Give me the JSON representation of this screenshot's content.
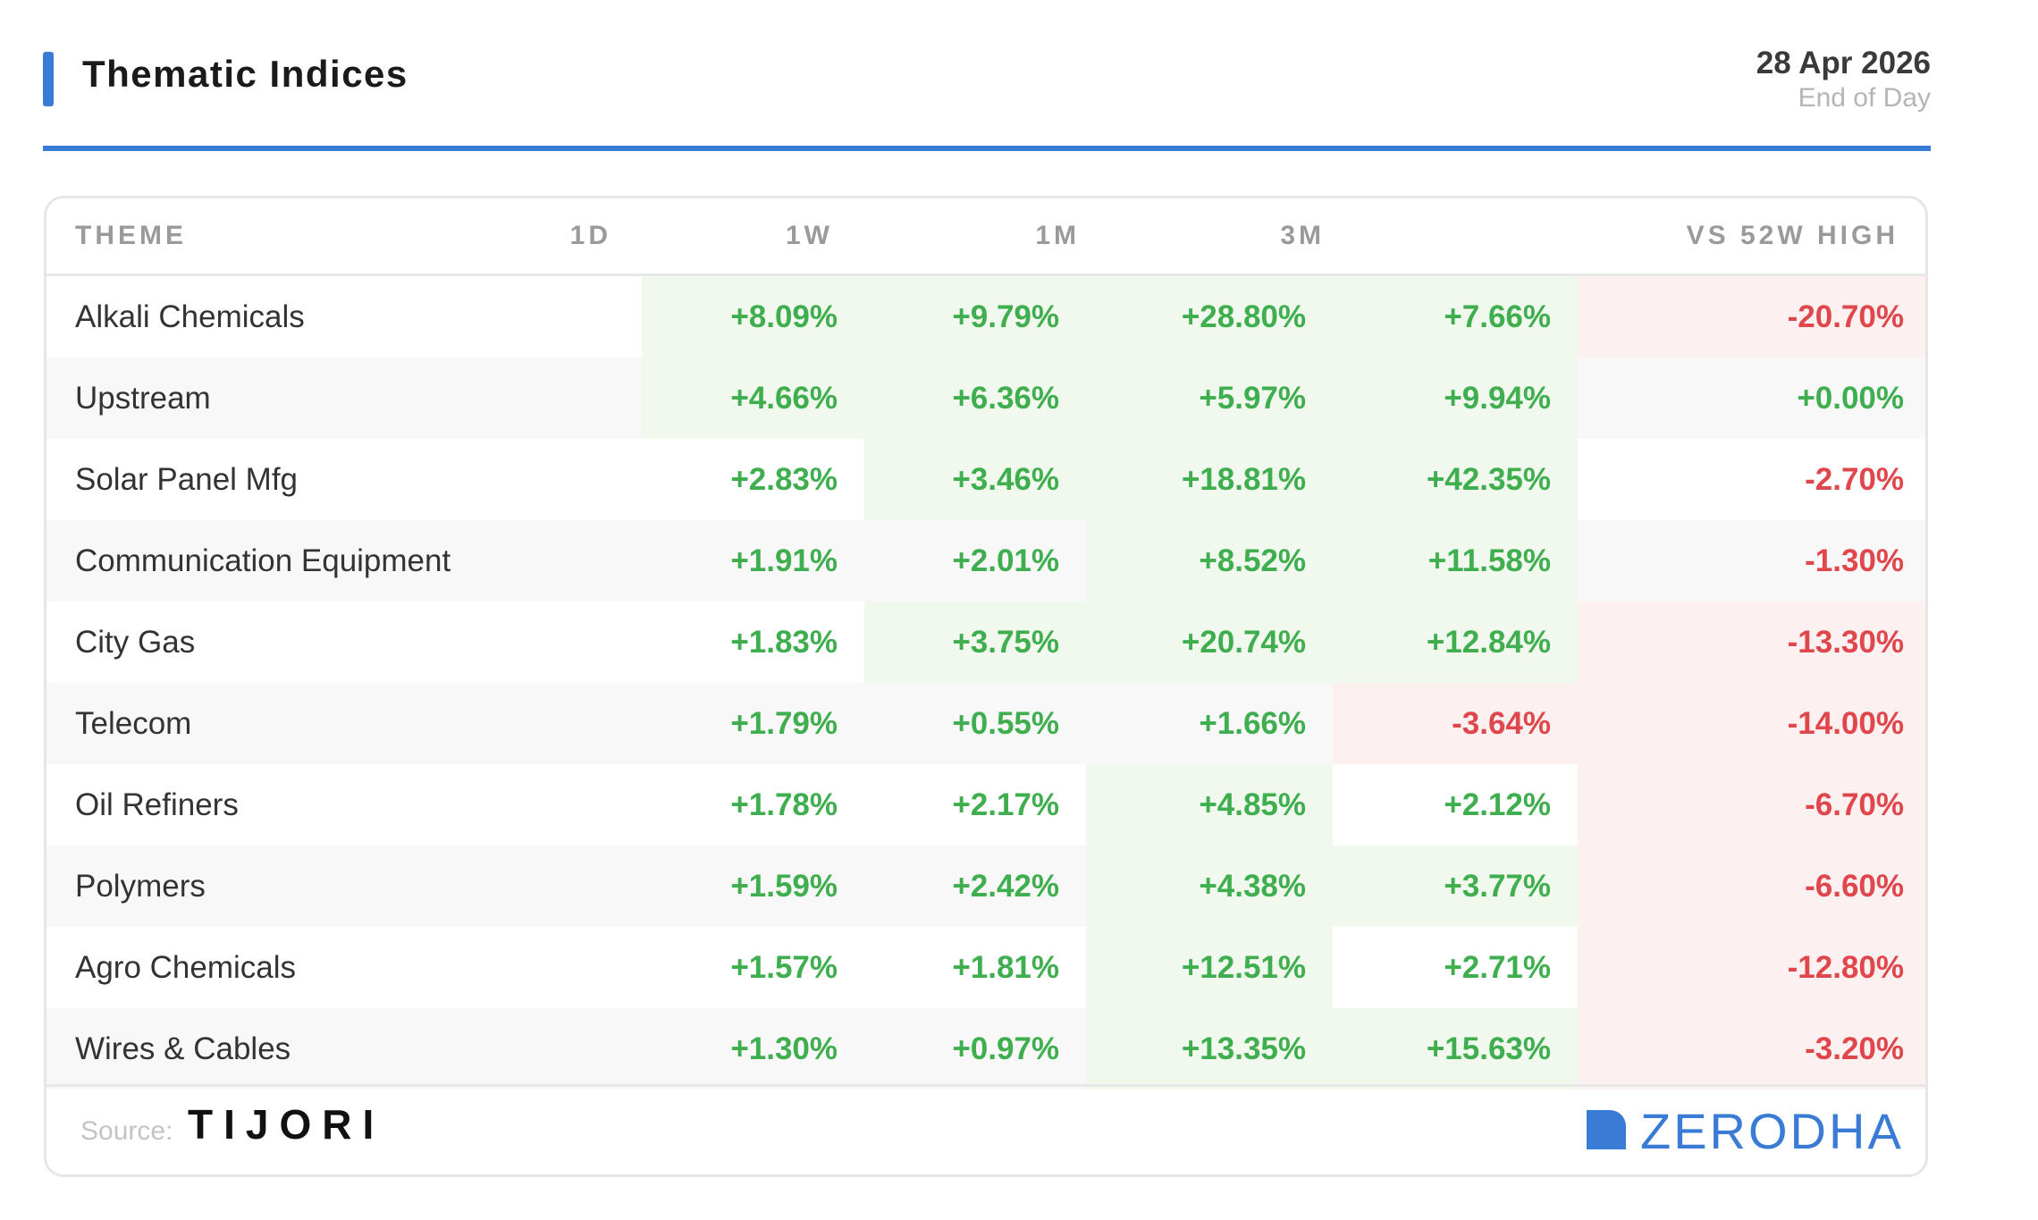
{
  "header": {
    "title": "Thematic Indices",
    "date": "28 Apr 2026",
    "subtitle": "End of Day"
  },
  "colors": {
    "accent": "#3a7bd5",
    "positive_text": "#3fae4e",
    "negative_text": "#e0474c",
    "positive_bg": "#f1f8ee",
    "negative_bg": "#fdf0f0",
    "zebra_bg": "#f8f8f8",
    "plain_bg": "#ffffff"
  },
  "table": {
    "columns": [
      "THEME",
      "1D",
      "1W",
      "1M",
      "3M",
      "VS 52W HIGH"
    ],
    "rows": [
      {
        "theme": "Alkali Chemicals",
        "values": [
          "+8.09%",
          "+9.79%",
          "+28.80%",
          "+7.66%",
          "-20.70%"
        ],
        "highlight": [
          "pos",
          "pos",
          "pos",
          "pos",
          "neg"
        ]
      },
      {
        "theme": "Upstream",
        "values": [
          "+4.66%",
          "+6.36%",
          "+5.97%",
          "+9.94%",
          "+0.00%"
        ],
        "highlight": [
          "pos",
          "pos",
          "pos",
          "pos",
          ""
        ]
      },
      {
        "theme": "Solar Panel Mfg",
        "values": [
          "+2.83%",
          "+3.46%",
          "+18.81%",
          "+42.35%",
          "-2.70%"
        ],
        "highlight": [
          "",
          "pos",
          "pos",
          "pos",
          ""
        ]
      },
      {
        "theme": "Communication Equipment",
        "values": [
          "+1.91%",
          "+2.01%",
          "+8.52%",
          "+11.58%",
          "-1.30%"
        ],
        "highlight": [
          "",
          "",
          "pos",
          "pos",
          ""
        ]
      },
      {
        "theme": "City Gas",
        "values": [
          "+1.83%",
          "+3.75%",
          "+20.74%",
          "+12.84%",
          "-13.30%"
        ],
        "highlight": [
          "",
          "pos",
          "pos",
          "pos",
          "neg"
        ]
      },
      {
        "theme": "Telecom",
        "values": [
          "+1.79%",
          "+0.55%",
          "+1.66%",
          "-3.64%",
          "-14.00%"
        ],
        "highlight": [
          "",
          "",
          "",
          "neg",
          "neg"
        ]
      },
      {
        "theme": "Oil Refiners",
        "values": [
          "+1.78%",
          "+2.17%",
          "+4.85%",
          "+2.12%",
          "-6.70%"
        ],
        "highlight": [
          "",
          "",
          "pos",
          "",
          "neg"
        ]
      },
      {
        "theme": "Polymers",
        "values": [
          "+1.59%",
          "+2.42%",
          "+4.38%",
          "+3.77%",
          "-6.60%"
        ],
        "highlight": [
          "",
          "",
          "pos",
          "pos",
          "neg"
        ]
      },
      {
        "theme": "Agro Chemicals",
        "values": [
          "+1.57%",
          "+1.81%",
          "+12.51%",
          "+2.71%",
          "-12.80%"
        ],
        "highlight": [
          "",
          "",
          "pos",
          "",
          "neg"
        ]
      },
      {
        "theme": "Wires & Cables",
        "values": [
          "+1.30%",
          "+0.97%",
          "+13.35%",
          "+15.63%",
          "-3.20%"
        ],
        "highlight": [
          "",
          "",
          "pos",
          "pos",
          "neg"
        ]
      }
    ]
  },
  "footer": {
    "source_label": "Source:",
    "source_brand": "TIJORI",
    "brand": "ZERODHA",
    "brand_icon": "zerodha-logo-icon"
  }
}
